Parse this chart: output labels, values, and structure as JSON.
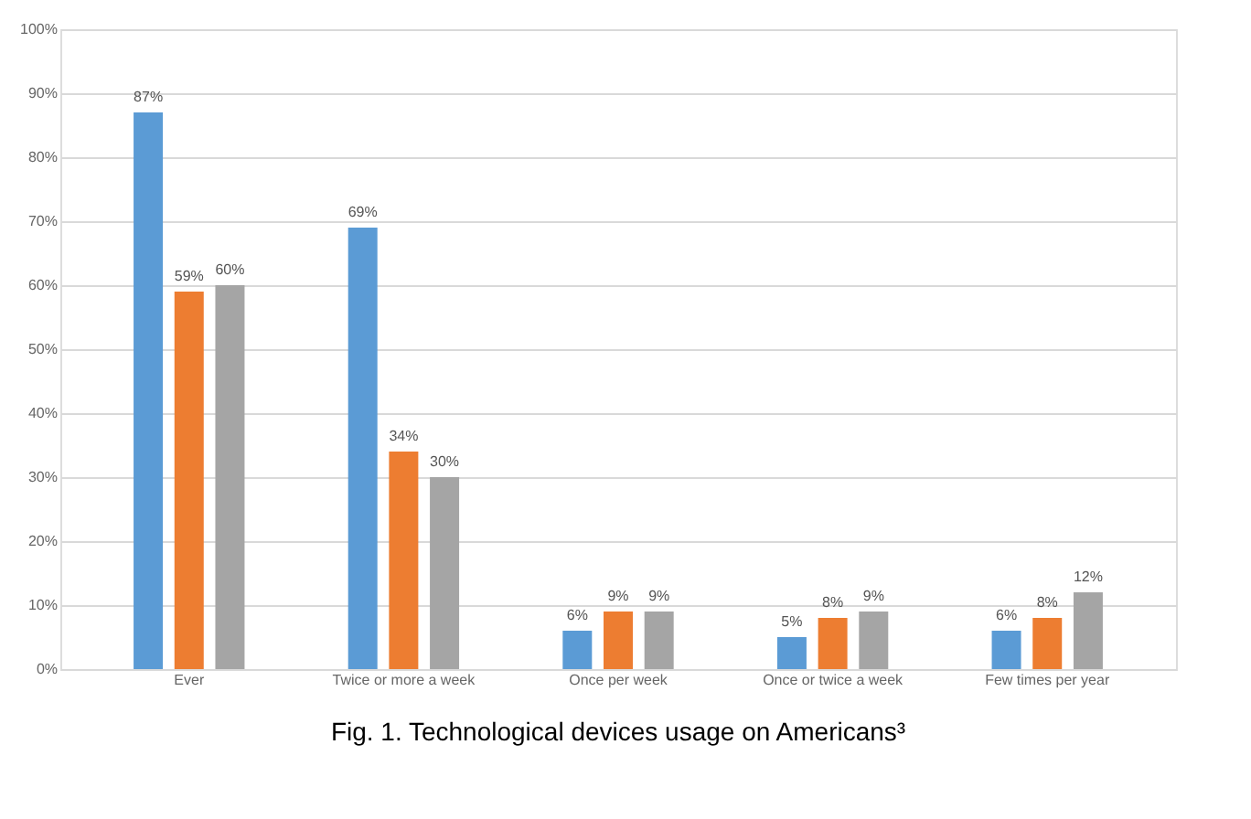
{
  "chart_data": {
    "type": "bar",
    "categories": [
      "Ever",
      "Twice or more a week",
      "Once per week",
      "Once or twice a week",
      "Few times per year"
    ],
    "series": [
      {
        "color": "#5b9bd5",
        "values": [
          87,
          69,
          6,
          5,
          6
        ],
        "value_labels": [
          "87%",
          "69%",
          "6%",
          "5%",
          "6%"
        ]
      },
      {
        "color": "#ed7d31",
        "values": [
          59,
          34,
          9,
          8,
          8
        ],
        "value_labels": [
          "59%",
          "34%",
          "9%",
          "8%",
          "8%"
        ]
      },
      {
        "color": "#a5a5a5",
        "values": [
          60,
          30,
          9,
          9,
          12
        ],
        "value_labels": [
          "60%",
          "30%",
          "9%",
          "9%",
          "12%"
        ]
      }
    ],
    "ylim": [
      0,
      100
    ],
    "yticks": [
      {
        "value": 0,
        "label": "0%"
      },
      {
        "value": 10,
        "label": "10%"
      },
      {
        "value": 20,
        "label": "20%"
      },
      {
        "value": 30,
        "label": "30%"
      },
      {
        "value": 40,
        "label": "40%"
      },
      {
        "value": 50,
        "label": "50%"
      },
      {
        "value": 60,
        "label": "60%"
      },
      {
        "value": 70,
        "label": "70%"
      },
      {
        "value": 80,
        "label": "80%"
      },
      {
        "value": 90,
        "label": "90%"
      },
      {
        "value": 100,
        "label": "100%"
      }
    ],
    "grid": "y",
    "annotations": [
      "Fig. 1. Technological devices usage on Americans³"
    ]
  }
}
